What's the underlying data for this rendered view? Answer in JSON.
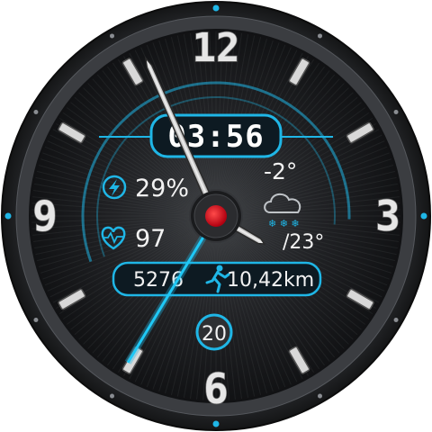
{
  "watch_face": {
    "dial_numerals": {
      "twelve": "12",
      "three": "3",
      "six": "6",
      "nine": "9"
    },
    "digital_time": "03:56",
    "battery": {
      "value": "29%",
      "icon": "lightning-bolt-icon"
    },
    "heart_rate": {
      "value": "97",
      "icon": "heart-pulse-icon"
    },
    "weather": {
      "temperature": "-2°",
      "secondary_temp": "/23°",
      "icon": "snow-cloud-icon"
    },
    "activity": {
      "steps": "5276",
      "distance": "10,42km",
      "icon": "running-person-icon"
    },
    "date": "20",
    "hands": {
      "hour_angle_deg": 120,
      "minute_angle_deg": 336,
      "second_angle_deg": 211
    },
    "colors": {
      "accent": "#1fb6e6",
      "center_dot": "#e0141e",
      "bezel": "#2a2c2f",
      "dial": "#1a1b1d"
    }
  }
}
